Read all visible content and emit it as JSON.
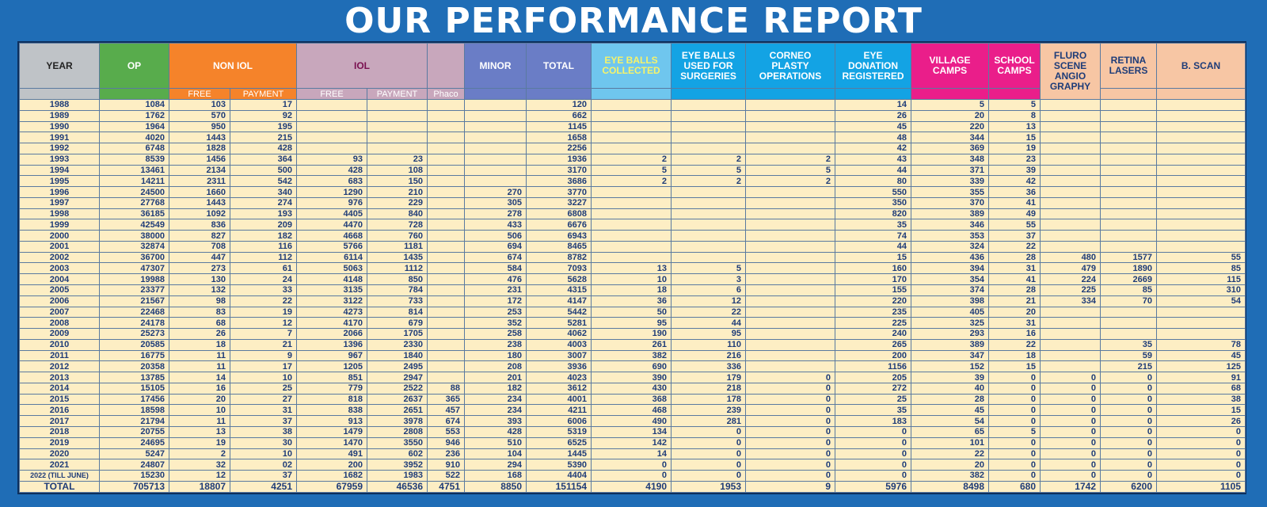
{
  "title": "OUR PERFORMANCE REPORT",
  "headers": {
    "year": "YEAR",
    "op": "OP",
    "non_iol": "NON IOL",
    "iol": "IOL",
    "minor": "MINOR",
    "total": "TOTAL",
    "eye_balls_collected": "EYE BALLS COLLECTED",
    "eye_balls_used": "EYE BALLS USED FOR SURGERIES",
    "corneo": "CORNEO PLASTY OPERATIONS",
    "eye_donation": "EYE DONATION REGISTERED",
    "village": "VILLAGE CAMPS",
    "school": "SCHOOL CAMPS",
    "fluro": "FLURO SCENE ANGIO GRAPHY",
    "retina": "RETINA LASERS",
    "bscan": "B. SCAN",
    "free": "FREE",
    "payment": "PAYMENT",
    "phaco": "Phaco"
  },
  "rows": [
    [
      "1988",
      "1084",
      "103",
      "17",
      "",
      "",
      "",
      "",
      "120",
      "",
      "",
      "",
      "14",
      "5",
      "5",
      "",
      "",
      ""
    ],
    [
      "1989",
      "1762",
      "570",
      "92",
      "",
      "",
      "",
      "",
      "662",
      "",
      "",
      "",
      "26",
      "20",
      "8",
      "",
      "",
      ""
    ],
    [
      "1990",
      "1964",
      "950",
      "195",
      "",
      "",
      "",
      "",
      "1145",
      "",
      "",
      "",
      "45",
      "220",
      "13",
      "",
      "",
      ""
    ],
    [
      "1991",
      "4020",
      "1443",
      "215",
      "",
      "",
      "",
      "",
      "1658",
      "",
      "",
      "",
      "48",
      "344",
      "15",
      "",
      "",
      ""
    ],
    [
      "1992",
      "6748",
      "1828",
      "428",
      "",
      "",
      "",
      "",
      "2256",
      "",
      "",
      "",
      "42",
      "369",
      "19",
      "",
      "",
      ""
    ],
    [
      "1993",
      "8539",
      "1456",
      "364",
      "93",
      "23",
      "",
      "",
      "1936",
      "2",
      "2",
      "2",
      "43",
      "348",
      "23",
      "",
      "",
      ""
    ],
    [
      "1994",
      "13461",
      "2134",
      "500",
      "428",
      "108",
      "",
      "",
      "3170",
      "5",
      "5",
      "5",
      "44",
      "371",
      "39",
      "",
      "",
      ""
    ],
    [
      "1995",
      "14211",
      "2311",
      "542",
      "683",
      "150",
      "",
      "",
      "3686",
      "2",
      "2",
      "2",
      "80",
      "339",
      "42",
      "",
      "",
      ""
    ],
    [
      "1996",
      "24500",
      "1660",
      "340",
      "1290",
      "210",
      "",
      "270",
      "3770",
      "",
      "",
      "",
      "550",
      "355",
      "36",
      "",
      "",
      ""
    ],
    [
      "1997",
      "27768",
      "1443",
      "274",
      "976",
      "229",
      "",
      "305",
      "3227",
      "",
      "",
      "",
      "350",
      "370",
      "41",
      "",
      "",
      ""
    ],
    [
      "1998",
      "36185",
      "1092",
      "193",
      "4405",
      "840",
      "",
      "278",
      "6808",
      "",
      "",
      "",
      "820",
      "389",
      "49",
      "",
      "",
      ""
    ],
    [
      "1999",
      "42549",
      "836",
      "209",
      "4470",
      "728",
      "",
      "433",
      "6676",
      "",
      "",
      "",
      "35",
      "346",
      "55",
      "",
      "",
      ""
    ],
    [
      "2000",
      "38000",
      "827",
      "182",
      "4668",
      "760",
      "",
      "506",
      "6943",
      "",
      "",
      "",
      "74",
      "353",
      "37",
      "",
      "",
      ""
    ],
    [
      "2001",
      "32874",
      "708",
      "116",
      "5766",
      "1181",
      "",
      "694",
      "8465",
      "",
      "",
      "",
      "44",
      "324",
      "22",
      "",
      "",
      ""
    ],
    [
      "2002",
      "36700",
      "447",
      "112",
      "6114",
      "1435",
      "",
      "674",
      "8782",
      "",
      "",
      "",
      "15",
      "436",
      "28",
      "480",
      "1577",
      "55"
    ],
    [
      "2003",
      "47307",
      "273",
      "61",
      "5063",
      "1112",
      "",
      "584",
      "7093",
      "13",
      "5",
      "",
      "160",
      "394",
      "31",
      "479",
      "1890",
      "85"
    ],
    [
      "2004",
      "19988",
      "130",
      "24",
      "4148",
      "850",
      "",
      "476",
      "5628",
      "10",
      "3",
      "",
      "170",
      "354",
      "41",
      "224",
      "2669",
      "115"
    ],
    [
      "2005",
      "23377",
      "132",
      "33",
      "3135",
      "784",
      "",
      "231",
      "4315",
      "18",
      "6",
      "",
      "155",
      "374",
      "28",
      "225",
      "85",
      "310"
    ],
    [
      "2006",
      "21567",
      "98",
      "22",
      "3122",
      "733",
      "",
      "172",
      "4147",
      "36",
      "12",
      "",
      "220",
      "398",
      "21",
      "334",
      "70",
      "54"
    ],
    [
      "2007",
      "22468",
      "83",
      "19",
      "4273",
      "814",
      "",
      "253",
      "5442",
      "50",
      "22",
      "",
      "235",
      "405",
      "20",
      "",
      "",
      ""
    ],
    [
      "2008",
      "24178",
      "68",
      "12",
      "4170",
      "679",
      "",
      "352",
      "5281",
      "95",
      "44",
      "",
      "225",
      "325",
      "31",
      "",
      "",
      ""
    ],
    [
      "2009",
      "25273",
      "26",
      "7",
      "2066",
      "1705",
      "",
      "258",
      "4062",
      "190",
      "95",
      "",
      "240",
      "293",
      "16",
      "",
      "",
      ""
    ],
    [
      "2010",
      "20585",
      "18",
      "21",
      "1396",
      "2330",
      "",
      "238",
      "4003",
      "261",
      "110",
      "",
      "265",
      "389",
      "22",
      "",
      "35",
      "78"
    ],
    [
      "2011",
      "16775",
      "11",
      "9",
      "967",
      "1840",
      "",
      "180",
      "3007",
      "382",
      "216",
      "",
      "200",
      "347",
      "18",
      "",
      "59",
      "45"
    ],
    [
      "2012",
      "20358",
      "11",
      "17",
      "1205",
      "2495",
      "",
      "208",
      "3936",
      "690",
      "336",
      "",
      "1156",
      "152",
      "15",
      "",
      "215",
      "125"
    ],
    [
      "2013",
      "13785",
      "14",
      "10",
      "851",
      "2947",
      "",
      "201",
      "4023",
      "390",
      "179",
      "0",
      "205",
      "39",
      "0",
      "0",
      "0",
      "91"
    ],
    [
      "2014",
      "15105",
      "16",
      "25",
      "779",
      "2522",
      "88",
      "182",
      "3612",
      "430",
      "218",
      "0",
      "272",
      "40",
      "0",
      "0",
      "0",
      "68"
    ],
    [
      "2015",
      "17456",
      "20",
      "27",
      "818",
      "2637",
      "365",
      "234",
      "4001",
      "368",
      "178",
      "0",
      "25",
      "28",
      "0",
      "0",
      "0",
      "38"
    ],
    [
      "2016",
      "18598",
      "10",
      "31",
      "838",
      "2651",
      "457",
      "234",
      "4211",
      "468",
      "239",
      "0",
      "35",
      "45",
      "0",
      "0",
      "0",
      "15"
    ],
    [
      "2017",
      "21794",
      "11",
      "37",
      "913",
      "3978",
      "674",
      "393",
      "6006",
      "490",
      "281",
      "0",
      "183",
      "54",
      "0",
      "0",
      "0",
      "26"
    ],
    [
      "2018",
      "20755",
      "13",
      "38",
      "1479",
      "2808",
      "553",
      "428",
      "5319",
      "134",
      "0",
      "0",
      "0",
      "65",
      "5",
      "0",
      "0",
      "0"
    ],
    [
      "2019",
      "24695",
      "19",
      "30",
      "1470",
      "3550",
      "946",
      "510",
      "6525",
      "142",
      "0",
      "0",
      "0",
      "101",
      "0",
      "0",
      "0",
      "0"
    ],
    [
      "2020",
      "5247",
      "2",
      "10",
      "491",
      "602",
      "236",
      "104",
      "1445",
      "14",
      "0",
      "0",
      "0",
      "22",
      "0",
      "0",
      "0",
      "0"
    ],
    [
      "2021",
      "24807",
      "32",
      "02",
      "200",
      "3952",
      "910",
      "294",
      "5390",
      "0",
      "0",
      "0",
      "0",
      "20",
      "0",
      "0",
      "0",
      "0"
    ],
    [
      "2022 (TILL JUNE)",
      "15230",
      "12",
      "37",
      "1682",
      "1983",
      "522",
      "168",
      "4404",
      "0",
      "0",
      "0",
      "0",
      "382",
      "0",
      "0",
      "0",
      "0"
    ],
    [
      "TOTAL",
      "705713",
      "18807",
      "4251",
      "67959",
      "46536",
      "4751",
      "8850",
      "151154",
      "4190",
      "1953",
      "9",
      "5976",
      "8498",
      "680",
      "1742",
      "6200",
      "1105"
    ]
  ]
}
